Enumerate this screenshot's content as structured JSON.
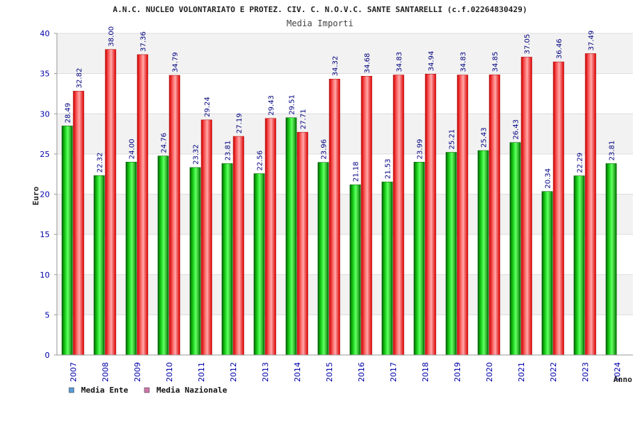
{
  "chart_data": {
    "type": "bar",
    "title": "A.N.C. NUCLEO VOLONTARIATO E PROTEZ. CIV. C. N.O.V.C. SANTE SANTARELLI (c.f.02264830429)",
    "subtitle": "Media Importi",
    "ylabel": "Euro",
    "xlabel": "Anno",
    "ylim": [
      0,
      40
    ],
    "yticks": [
      0,
      5,
      10,
      15,
      20,
      25,
      30,
      35,
      40
    ],
    "grid": true,
    "legend_position": "bottom-left",
    "categories": [
      "2007",
      "2008",
      "2009",
      "2010",
      "2011",
      "2012",
      "2013",
      "2014",
      "2015",
      "2016",
      "2017",
      "2018",
      "2019",
      "2020",
      "2021",
      "2022",
      "2023",
      "2024"
    ],
    "series": [
      {
        "name": "Media Ente",
        "color": "#00aa00",
        "legend_color": "#5b9bd5",
        "values": [
          28.49,
          22.32,
          24.0,
          24.76,
          23.32,
          23.81,
          22.56,
          29.51,
          23.96,
          21.18,
          21.53,
          23.99,
          25.21,
          25.43,
          26.43,
          20.34,
          22.29,
          23.81
        ],
        "labels": [
          "28.49",
          "22.32",
          "24.00",
          "24.76",
          "23.32",
          "23.81",
          "22.56",
          "29.51",
          "23.96",
          "21.18",
          "21.53",
          "23.99",
          "25.21",
          "25.43",
          "26.43",
          "20.34",
          "22.29",
          "23.81"
        ]
      },
      {
        "name": "Media Nazionale",
        "color": "#ee1111",
        "legend_color": "#cc77aa",
        "values": [
          32.82,
          38.0,
          37.36,
          34.79,
          29.24,
          27.19,
          29.43,
          27.71,
          34.32,
          34.68,
          34.83,
          34.94,
          34.83,
          34.85,
          37.05,
          36.46,
          37.49,
          null
        ],
        "labels": [
          "32.82",
          "38.00",
          "37.36",
          "34.79",
          "29.24",
          "27.19",
          "29.43",
          "27.71",
          "34.32",
          "34.68",
          "34.83",
          "34.94",
          "34.83",
          "34.85",
          "37.05",
          "36.46",
          "37.49",
          ""
        ]
      }
    ]
  }
}
